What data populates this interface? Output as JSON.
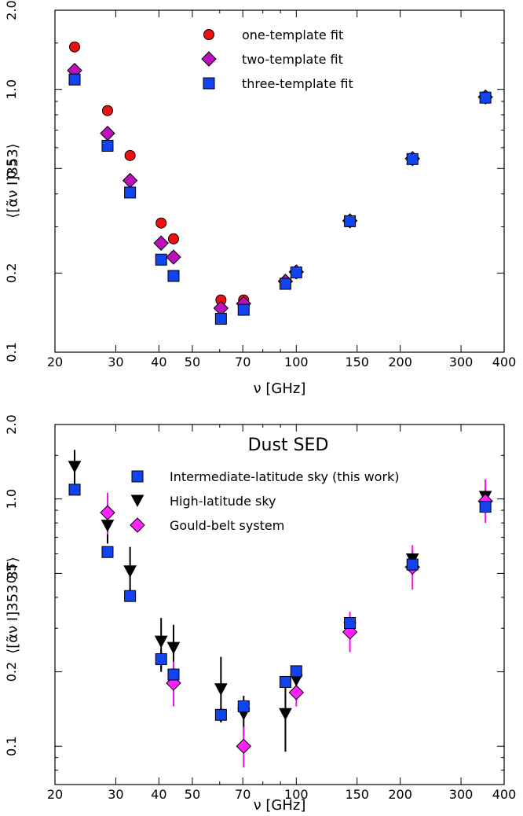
{
  "chart_data": [
    {
      "type": "scatter",
      "xscale": "log",
      "yscale": "log",
      "xlim": [
        20,
        400
      ],
      "ylim": [
        0.1,
        2.0
      ],
      "x_ticks": [
        20,
        30,
        40,
        50,
        70,
        100,
        150,
        200,
        300,
        400
      ],
      "y_ticks": [
        0.1,
        0.2,
        0.5,
        1.0,
        2.0
      ],
      "xlabel": "ν [GHz]",
      "ylabel": "⟨[α̃ν I]353⟩",
      "legend_location": "top-center",
      "series": [
        {
          "name": "one-template fit",
          "marker": "circle",
          "color": "#ee1111",
          "points": [
            [
              22.8,
              1.45
            ],
            [
              28.4,
              0.83
            ],
            [
              33.0,
              0.56
            ],
            [
              40.6,
              0.31
            ],
            [
              44.1,
              0.27
            ],
            [
              60.5,
              0.158
            ],
            [
              70.4,
              0.158
            ]
          ]
        },
        {
          "name": "two-template fit",
          "marker": "diamond",
          "color": "#bb11bb",
          "points": [
            [
              22.8,
              1.18
            ],
            [
              28.4,
              0.68
            ],
            [
              33.0,
              0.45
            ],
            [
              40.6,
              0.26
            ],
            [
              44.1,
              0.23
            ],
            [
              60.5,
              0.147
            ],
            [
              70.4,
              0.153
            ],
            [
              93.0,
              0.186
            ],
            [
              100,
              0.202
            ],
            [
              143,
              0.316
            ],
            [
              217,
              0.545
            ],
            [
              353,
              0.935
            ]
          ]
        },
        {
          "name": "three-template fit",
          "marker": "square",
          "color": "#1144ee",
          "points": [
            [
              22.8,
              1.09
            ],
            [
              28.4,
              0.61
            ],
            [
              33.0,
              0.405
            ],
            [
              40.6,
              0.225
            ],
            [
              44.1,
              0.195
            ],
            [
              60.5,
              0.134
            ],
            [
              70.4,
              0.145
            ],
            [
              93.0,
              0.182
            ],
            [
              100,
              0.201
            ],
            [
              143,
              0.315
            ],
            [
              217,
              0.543
            ],
            [
              353,
              0.93
            ]
          ]
        }
      ]
    },
    {
      "type": "scatter",
      "xscale": "log",
      "yscale": "log",
      "xlim": [
        20,
        400
      ],
      "ylim": [
        0.07,
        2.0
      ],
      "x_ticks": [
        20,
        30,
        40,
        50,
        70,
        100,
        150,
        200,
        300,
        400
      ],
      "y_ticks": [
        0.1,
        0.2,
        0.5,
        1.0,
        2.0
      ],
      "xlabel": "ν [GHz]",
      "ylabel": "⟨[α̃ν I]353 3T⟩",
      "legend_title": "Dust SED",
      "legend_location": "top-center",
      "series": [
        {
          "name": "High-latitude sky",
          "marker": "triangle-down",
          "color": "#000000",
          "err_color": "#000000",
          "points": [
            [
              22.8,
              1.35,
              1.15,
              1.58
            ],
            [
              28.4,
              0.78,
              0.66,
              0.93
            ],
            [
              33.0,
              0.51,
              0.41,
              0.64
            ],
            [
              40.6,
              0.265,
              0.2,
              0.33
            ],
            [
              44.1,
              0.25,
              0.19,
              0.31
            ],
            [
              60.5,
              0.17,
              0.125,
              0.23
            ],
            [
              70.4,
              0.135,
              0.11,
              0.16
            ],
            [
              93.0,
              0.135,
              0.095,
              0.19
            ],
            [
              100,
              0.185,
              0.17,
              0.2
            ],
            [
              143,
              0.3,
              0.27,
              0.33
            ],
            [
              217,
              0.57,
              0.52,
              0.62
            ],
            [
              353,
              1.02,
              0.93,
              1.1
            ]
          ]
        },
        {
          "name": "Gould-belt system",
          "marker": "diamond",
          "color": "#ff22ff",
          "err_color": "#ee11ee",
          "points": [
            [
              28.4,
              0.88,
              0.72,
              1.06
            ],
            [
              44.1,
              0.18,
              0.145,
              0.22
            ],
            [
              70.4,
              0.1,
              0.082,
              0.12
            ],
            [
              100,
              0.165,
              0.145,
              0.19
            ],
            [
              143,
              0.29,
              0.24,
              0.35
            ],
            [
              217,
              0.53,
              0.43,
              0.65
            ],
            [
              353,
              0.98,
              0.8,
              1.2
            ]
          ]
        },
        {
          "name": "Intermediate-latitude sky (this work)",
          "marker": "square",
          "color": "#1144ee",
          "err_color": "#000000",
          "points": [
            [
              22.8,
              1.09,
              1.09,
              1.09
            ],
            [
              28.4,
              0.61,
              0.61,
              0.61
            ],
            [
              33.0,
              0.405,
              0.405,
              0.405
            ],
            [
              40.6,
              0.225,
              0.205,
              0.245
            ],
            [
              44.1,
              0.195,
              0.195,
              0.195
            ],
            [
              60.5,
              0.134,
              0.125,
              0.143
            ],
            [
              70.4,
              0.145,
              0.14,
              0.15
            ],
            [
              93.0,
              0.182,
              0.182,
              0.182
            ],
            [
              100,
              0.201,
              0.201,
              0.201
            ],
            [
              143,
              0.315,
              0.315,
              0.315
            ],
            [
              217,
              0.543,
              0.543,
              0.543
            ],
            [
              353,
              0.93,
              0.93,
              0.93
            ]
          ]
        }
      ],
      "legend_order": [
        2,
        0,
        1
      ]
    }
  ]
}
